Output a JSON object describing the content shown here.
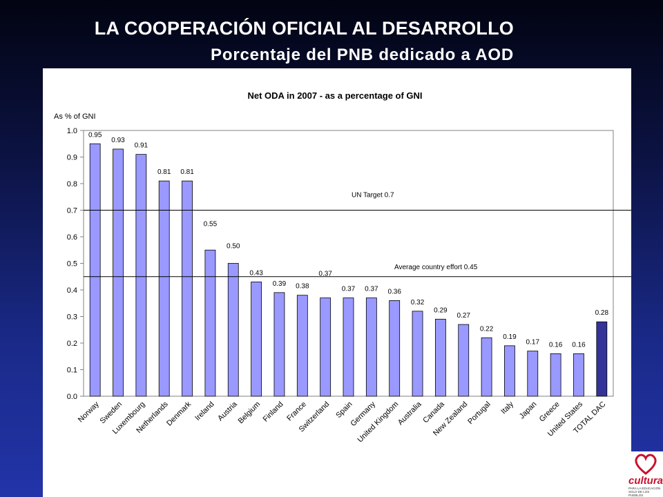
{
  "slide": {
    "title": "LA COOPERACIÓN OFICIAL AL DESARROLLO",
    "subtitle": "Porcentaje del PNB dedicado a AOD"
  },
  "logo": {
    "brand": "culturas",
    "tagline": "PARA LA EDUCACIÓN SOLO DE LOS PUEBLOS"
  },
  "colors": {
    "bar": "#9999ff",
    "bar_highlight": "#333399",
    "reference_line": "#000000"
  },
  "chart_data": {
    "type": "bar",
    "title": "Net ODA  in 2007  -  as a percentage  of GNI",
    "ylabel": "As % of GNI",
    "ylim": [
      0,
      1.0
    ],
    "yticks": [
      "0.0",
      "0.1",
      "0.2",
      "0.3",
      "0.4",
      "0.5",
      "0.6",
      "0.7",
      "0.8",
      "0.9",
      "1.0"
    ],
    "grid": false,
    "categories": [
      "Norway",
      "Sweden",
      "Luxembourg",
      "Netherlands",
      "Denmark",
      "Ireland",
      "Austria",
      "Belgium",
      "Finland",
      "France",
      "Switzerland",
      "Spain",
      "Germany",
      "United Kingdom",
      "Australia",
      "Canada",
      "New Zealand",
      "Portugal",
      "Italy",
      "Japan",
      "Greece",
      "United States",
      "TOTAL DAC"
    ],
    "values": [
      0.95,
      0.93,
      0.91,
      0.81,
      0.81,
      0.55,
      0.5,
      0.43,
      0.39,
      0.38,
      0.37,
      0.37,
      0.37,
      0.36,
      0.32,
      0.29,
      0.27,
      0.22,
      0.19,
      0.17,
      0.16,
      0.16,
      0.28
    ],
    "data_labels": [
      "0.95",
      "0.93",
      "0.91",
      "0.81",
      "0.81",
      "0.55",
      "0.50",
      "0.43",
      "0.39",
      "0.38",
      "0.37",
      "0.37",
      "0.37",
      "0.36",
      "0.32",
      "0.29",
      "0.27",
      "0.22",
      "0.19",
      "0.17",
      "0.16",
      "0.16",
      "0.28"
    ],
    "highlight_category": "TOTAL DAC",
    "reference_lines": [
      {
        "label": "UN Target 0.7",
        "value": 0.7
      },
      {
        "label": "Average country effort 0.45",
        "value": 0.45
      }
    ]
  }
}
